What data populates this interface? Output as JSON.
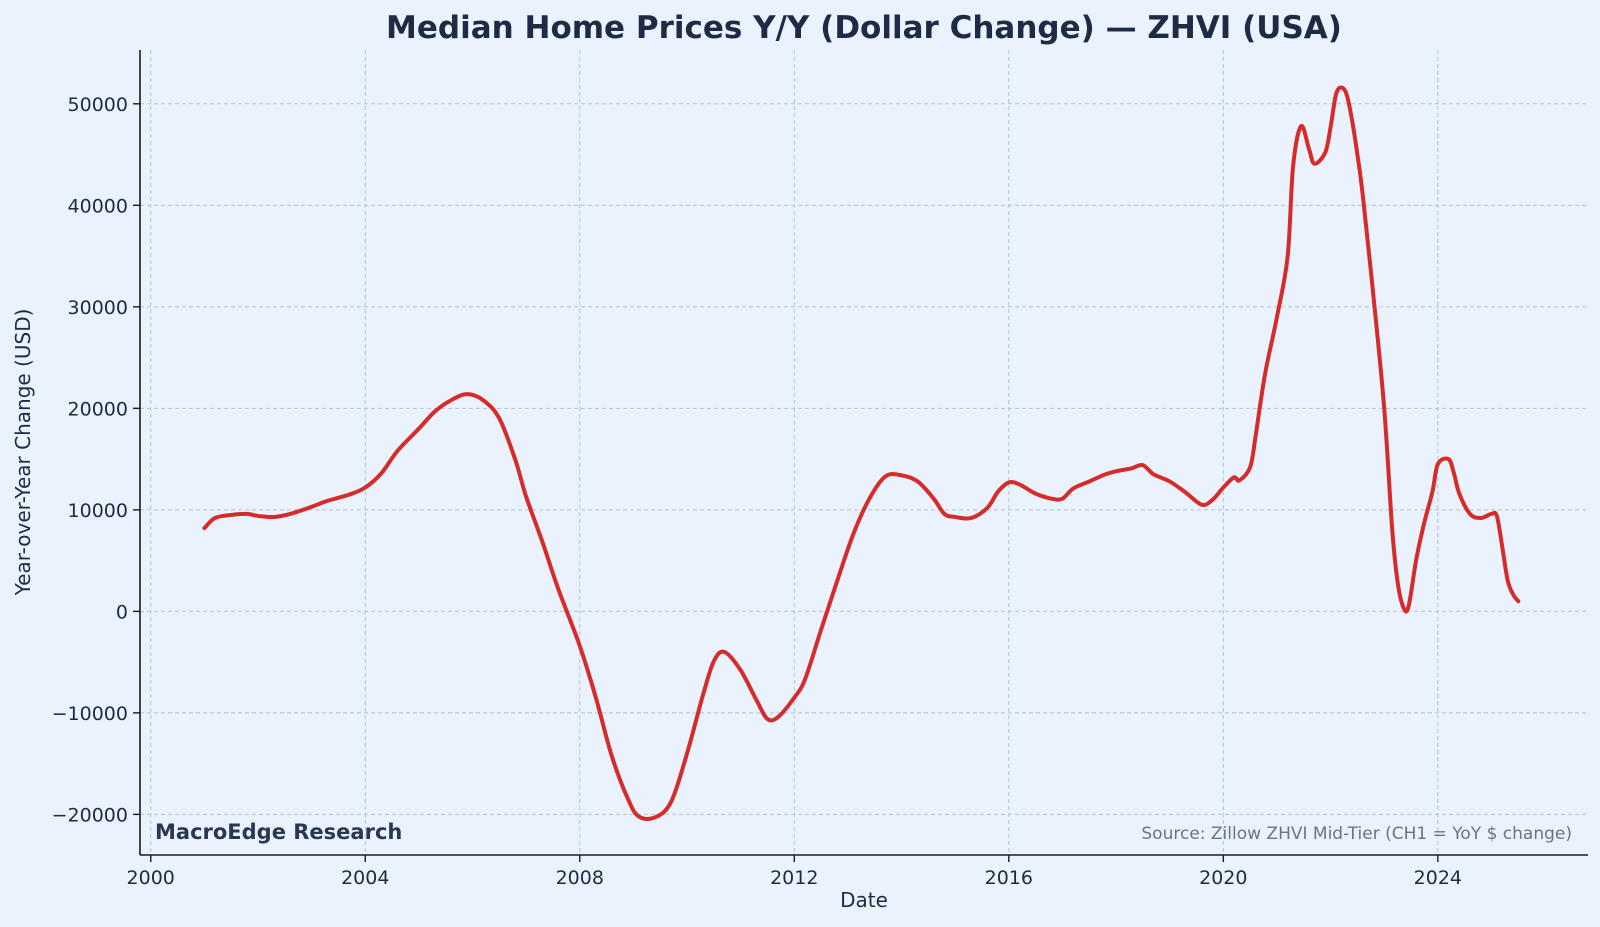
{
  "chart_data": {
    "type": "line",
    "title": "Median Home Prices Y/Y (Dollar Change) — ZHVI (USA)",
    "xlabel": "Date",
    "ylabel": "Year-over-Year Change (USD)",
    "xlim": [
      1999.8,
      2026.8
    ],
    "ylim": [
      -24000,
      55300
    ],
    "x_ticks": [
      2000,
      2004,
      2008,
      2012,
      2016,
      2020,
      2024
    ],
    "x_tick_labels": [
      "2000",
      "2004",
      "2008",
      "2012",
      "2016",
      "2020",
      "2024"
    ],
    "y_ticks": [
      -20000,
      -10000,
      0,
      10000,
      20000,
      30000,
      40000,
      50000
    ],
    "y_tick_labels": [
      "−20000",
      "−10000",
      "0",
      "10000",
      "20000",
      "30000",
      "40000",
      "50000"
    ],
    "grid": true,
    "line_color": "#d62b2b",
    "series": [
      {
        "x": [
          2001.0,
          2001.2,
          2001.5,
          2001.8,
          2002.0,
          2002.3,
          2002.6,
          2003.0,
          2003.3,
          2003.7,
          2004.0,
          2004.3,
          2004.6,
          2005.0,
          2005.3,
          2005.6,
          2005.9,
          2006.2,
          2006.5,
          2006.8,
          2007.0,
          2007.3,
          2007.6,
          2008.0,
          2008.3,
          2008.6,
          2008.9,
          2009.1,
          2009.4,
          2009.7,
          2010.0,
          2010.3,
          2010.5,
          2010.7,
          2011.0,
          2011.3,
          2011.5,
          2011.7,
          2012.0,
          2012.2,
          2012.5,
          2012.8,
          2013.1,
          2013.4,
          2013.7,
          2014.0,
          2014.3,
          2014.6,
          2014.8,
          2015.0,
          2015.3,
          2015.6,
          2015.8,
          2016.0,
          2016.2,
          2016.5,
          2016.8,
          2017.0,
          2017.2,
          2017.5,
          2017.8,
          2018.0,
          2018.2,
          2018.3,
          2018.5,
          2018.7,
          2019.0,
          2019.3,
          2019.6,
          2019.8,
          2020.0,
          2020.2,
          2020.3,
          2020.5,
          2020.6,
          2020.7,
          2020.8,
          2021.0,
          2021.2,
          2021.3,
          2021.45,
          2021.6,
          2021.7,
          2021.9,
          2022.0,
          2022.1,
          2022.2,
          2022.3,
          2022.4,
          2022.5,
          2022.6,
          2022.8,
          2023.0,
          2023.15,
          2023.25,
          2023.35,
          2023.45,
          2023.6,
          2023.75,
          2023.9,
          2024.0,
          2024.2,
          2024.3,
          2024.4,
          2024.6,
          2024.8,
          2025.0,
          2025.1,
          2025.2,
          2025.3,
          2025.4,
          2025.5
        ],
        "y": [
          8200,
          9200,
          9500,
          9600,
          9400,
          9300,
          9600,
          10300,
          10900,
          11500,
          12200,
          13600,
          15800,
          18000,
          19700,
          20800,
          21400,
          20800,
          19000,
          14900,
          11300,
          6900,
          2200,
          -3400,
          -8500,
          -14300,
          -18500,
          -20200,
          -20300,
          -18800,
          -14000,
          -8200,
          -4900,
          -4000,
          -5800,
          -8800,
          -10600,
          -10400,
          -8500,
          -6700,
          -1800,
          3000,
          7600,
          11100,
          13300,
          13400,
          12800,
          11100,
          9600,
          9300,
          9200,
          10200,
          11800,
          12700,
          12500,
          11600,
          11100,
          11100,
          12100,
          12800,
          13500,
          13800,
          14000,
          14100,
          14400,
          13500,
          12800,
          11700,
          10500,
          11000,
          12200,
          13200,
          12900,
          14200,
          17200,
          20800,
          24000,
          29000,
          35000,
          43800,
          47800,
          45500,
          44100,
          45200,
          47700,
          50900,
          51600,
          50900,
          48400,
          45000,
          41000,
          31000,
          20000,
          8000,
          2900,
          500,
          400,
          5200,
          8800,
          11800,
          14500,
          15000,
          13600,
          11600,
          9600,
          9200,
          9600,
          9400,
          6400,
          3100,
          1700,
          1000
        ]
      }
    ]
  },
  "annotations": {
    "brand": "MacroEdge Research",
    "source": "Source: Zillow ZHVI Mid-Tier (CH1 = YoY $ change)"
  }
}
